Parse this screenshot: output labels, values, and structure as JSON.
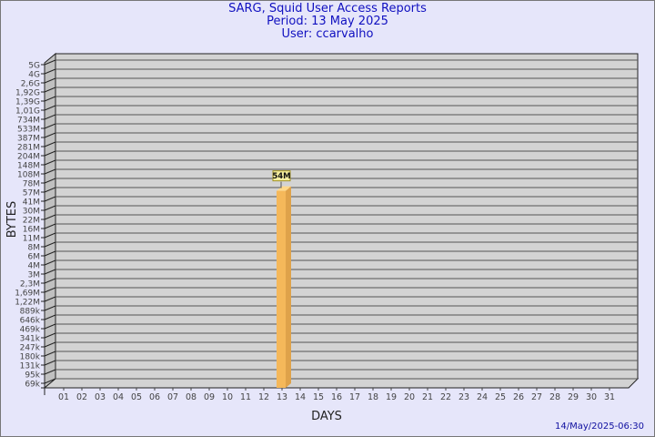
{
  "header": {
    "title": "SARG, Squid User Access Reports",
    "period": "Period: 13 May 2025",
    "user": "User: ccarvalho"
  },
  "footer": {
    "timestamp": "14/May/2025-06:30"
  },
  "colors": {
    "background": "#e6e6fa",
    "wall": "#d3d3d3",
    "bar": "#f5b85a",
    "title": "#1010c0"
  },
  "chart_data": {
    "type": "bar",
    "xlabel": "DAYS",
    "ylabel": "BYTES",
    "y_scale": "log",
    "grid": true,
    "y_ticks": [
      "5G",
      "4G",
      "2,6G",
      "1,92G",
      "1,39G",
      "1,01G",
      "734M",
      "533M",
      "387M",
      "281M",
      "204M",
      "148M",
      "108M",
      "78M",
      "57M",
      "41M",
      "30M",
      "22M",
      "16M",
      "11M",
      "8M",
      "6M",
      "4M",
      "3M",
      "2,3M",
      "1,69M",
      "1,22M",
      "889k",
      "646k",
      "469k",
      "341k",
      "247k",
      "180k",
      "131k",
      "95k",
      "69k"
    ],
    "categories": [
      "01",
      "02",
      "03",
      "04",
      "05",
      "06",
      "07",
      "08",
      "09",
      "10",
      "11",
      "12",
      "13",
      "14",
      "15",
      "16",
      "17",
      "18",
      "19",
      "20",
      "21",
      "22",
      "23",
      "24",
      "25",
      "26",
      "27",
      "28",
      "29",
      "30",
      "31"
    ],
    "bars": [
      {
        "day": "13",
        "value": "54M",
        "label": "54M"
      }
    ]
  }
}
